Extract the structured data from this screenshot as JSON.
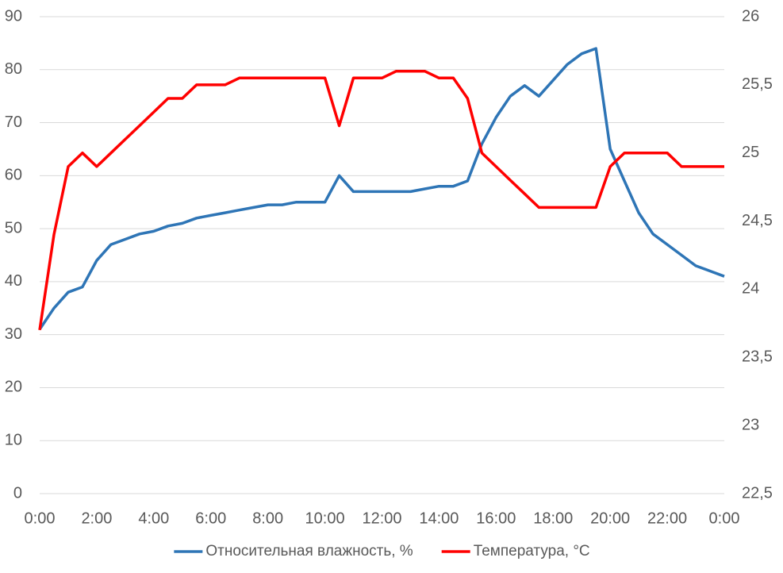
{
  "chart_data": {
    "type": "line",
    "x": [
      0,
      0.5,
      1,
      1.5,
      2,
      2.5,
      3,
      3.5,
      4,
      4.5,
      5,
      5.5,
      6,
      6.5,
      7,
      7.5,
      8,
      8.5,
      9,
      9.5,
      10,
      10.5,
      11,
      11.5,
      12,
      12.5,
      13,
      13.5,
      14,
      14.5,
      15,
      15.5,
      16,
      16.5,
      17,
      17.5,
      18,
      18.5,
      19,
      19.5,
      20,
      20.5,
      21,
      21.5,
      22,
      22.5,
      23,
      23.5,
      24
    ],
    "series": [
      {
        "name": "Относительная влажность, %",
        "color": "#2e75b6",
        "values": [
          31,
          35,
          38,
          39,
          44,
          47,
          48,
          49,
          49.5,
          50.5,
          51,
          52,
          52.5,
          53,
          53.5,
          54,
          54.5,
          54.5,
          55,
          55,
          55,
          60,
          57,
          57,
          57,
          57,
          57,
          57.5,
          58,
          58,
          59,
          66,
          71,
          75,
          77,
          75,
          78,
          81,
          83,
          84,
          65,
          59,
          53,
          49,
          47,
          45,
          43,
          42,
          41
        ]
      },
      {
        "name": "Температура, °C",
        "color": "#ff0000",
        "axis": "y2",
        "values": [
          23.7,
          24.4,
          24.9,
          25,
          24.9,
          25,
          25.1,
          25.2,
          25.3,
          25.4,
          25.4,
          25.5,
          25.5,
          25.5,
          25.55,
          25.55,
          25.55,
          25.55,
          25.55,
          25.55,
          25.55,
          25.2,
          25.55,
          25.55,
          25.55,
          25.6,
          25.6,
          25.6,
          25.55,
          25.55,
          25.4,
          25,
          24.9,
          24.8,
          24.7,
          24.6,
          24.6,
          24.6,
          24.6,
          24.6,
          24.9,
          25,
          25,
          25,
          25,
          24.9,
          24.9,
          24.9,
          24.9
        ]
      }
    ],
    "xlim": [
      0,
      24
    ],
    "xticks": [
      {
        "value": 0,
        "label": "0:00"
      },
      {
        "value": 2,
        "label": "2:00"
      },
      {
        "value": 4,
        "label": "4:00"
      },
      {
        "value": 6,
        "label": "6:00"
      },
      {
        "value": 8,
        "label": "8:00"
      },
      {
        "value": 10,
        "label": "10:00"
      },
      {
        "value": 12,
        "label": "12:00"
      },
      {
        "value": 14,
        "label": "14:00"
      },
      {
        "value": 16,
        "label": "16:00"
      },
      {
        "value": 18,
        "label": "18:00"
      },
      {
        "value": 20,
        "label": "20:00"
      },
      {
        "value": 22,
        "label": "22:00"
      },
      {
        "value": 24,
        "label": "0:00"
      }
    ],
    "ylim": [
      0,
      90
    ],
    "yticks": [
      0,
      10,
      20,
      30,
      40,
      50,
      60,
      70,
      80,
      90
    ],
    "y2lim": [
      22.5,
      26
    ],
    "y2ticks": [
      {
        "value": 22.5,
        "label": "22,5"
      },
      23,
      {
        "value": 23.5,
        "label": "23,5"
      },
      24,
      {
        "value": 24.5,
        "label": "24,5"
      },
      25,
      {
        "value": 25.5,
        "label": "25,5"
      },
      26
    ],
    "grid": true,
    "legend": "bottom"
  }
}
